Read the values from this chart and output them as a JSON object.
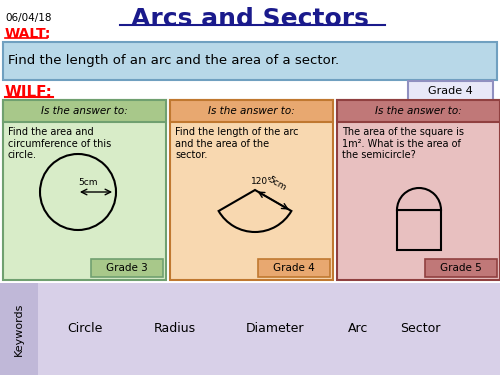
{
  "title": "Arcs and Sectors",
  "date": "06/04/18",
  "walt_label": "WALT:",
  "walt_text": "Find the length of an arc and the area of a sector.",
  "wilf_label": "WILF:",
  "grade4_box": "Grade 4",
  "bg_color": "#ffffff",
  "walt_bg": "#b8d8e8",
  "keywords_bg": "#d8d0e8",
  "keywords_label_bg": "#c0b8d8",
  "keywords": [
    "Circle",
    "Radius",
    "Diameter",
    "Arc",
    "Sector"
  ],
  "box1_header_bg": "#a8c88a",
  "box1_body_bg": "#d8ecc8",
  "box1_header": "Is the answer to:",
  "box1_text": "Find the area and\ncircumference of this\ncircle.",
  "box1_grade": "Grade 3",
  "box1_grade_bg": "#a8c88a",
  "box2_header_bg": "#e8a870",
  "box2_body_bg": "#f8d8b0",
  "box2_header": "Is the answer to:",
  "box2_text": "Find the length of the arc\nand the area of the\nsector.",
  "box2_grade": "Grade 4",
  "box2_grade_bg": "#e8a870",
  "box3_header_bg": "#c07878",
  "box3_body_bg": "#e8c0c0",
  "box3_header": "Is the answer to:",
  "box3_text": "The area of the square is\n1m². What is the area of\nthe semicircle?",
  "box3_grade": "Grade 5",
  "box3_grade_bg": "#c07878",
  "grade4_border": "#9090c0",
  "grade4_bg": "#e8e8f8"
}
